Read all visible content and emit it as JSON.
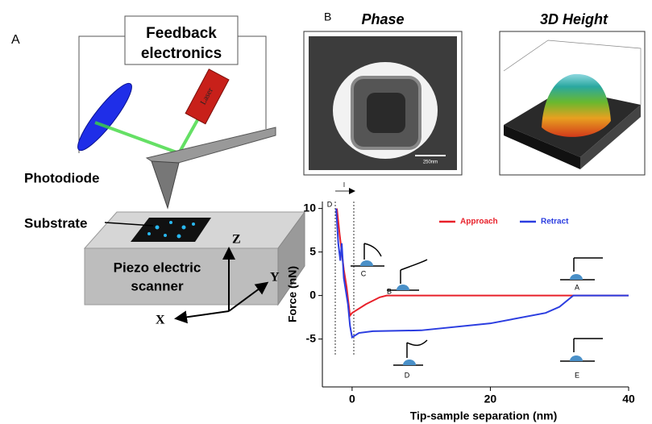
{
  "panel_a": {
    "label": "A",
    "feedback": [
      "Feedback",
      "electronics"
    ],
    "laser": "Laser",
    "photodiode": "Photodiode",
    "substrate": "Substrate",
    "scanner": [
      "Piezo electric",
      "scanner"
    ],
    "axes": [
      "Z",
      "Y",
      "X"
    ]
  },
  "panel_b": {
    "label": "B",
    "phase_title": "Phase",
    "height_title": "3D Height",
    "scale_bar": "250nm"
  },
  "chart_data": {
    "type": "line",
    "xlabel": "Tip-sample separation (nm)",
    "ylabel": "Force (nN)",
    "xlim": [
      -4.3,
      40
    ],
    "ylim": [
      -10.5,
      10.8
    ],
    "xticks": [
      0,
      20,
      40
    ],
    "yticks": [
      -5,
      0,
      5,
      10
    ],
    "legend": "top-right",
    "annotations": [
      "D",
      "I",
      "A",
      "B",
      "C",
      "D",
      "E"
    ],
    "series": [
      {
        "name": "Approach",
        "color": "#e8202a",
        "x": [
          -2.2,
          -1.8,
          -1.5,
          -1.2,
          -0.8,
          -0.5,
          -0.3,
          0,
          2,
          4,
          5,
          40
        ],
        "values": [
          10,
          7,
          5,
          3,
          1,
          -1,
          -2.3,
          -2,
          -1,
          -0.2,
          0,
          0
        ]
      },
      {
        "name": "Retract",
        "color": "#2b3de0",
        "x": [
          -2.3,
          -2,
          -1.7,
          -1.5,
          -1.2,
          -1,
          -0.6,
          -0.3,
          0,
          1,
          3,
          10,
          20,
          28,
          30,
          32,
          40
        ],
        "values": [
          10,
          6,
          4,
          6,
          2,
          1,
          -1,
          -3.5,
          -4.8,
          -4.3,
          -4.1,
          -4,
          -3.2,
          -2,
          -1.3,
          0,
          0
        ]
      }
    ]
  }
}
